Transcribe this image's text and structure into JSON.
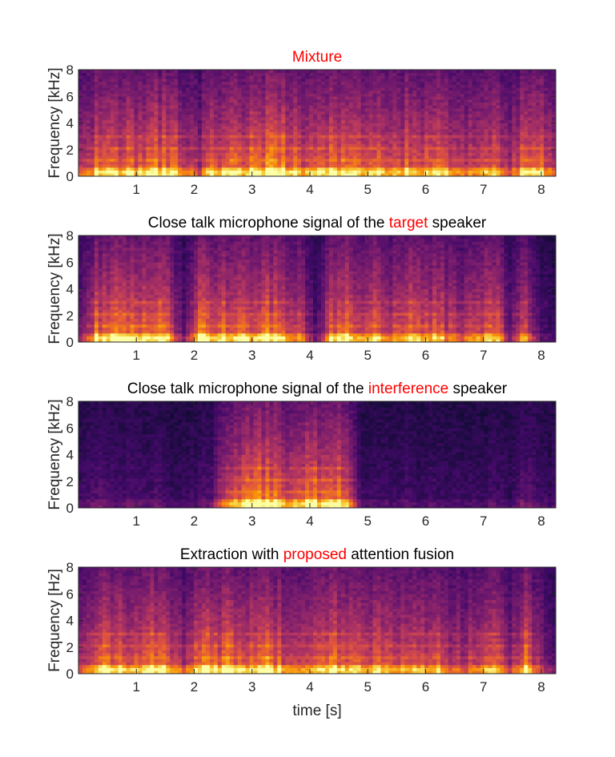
{
  "colors": {
    "highlight": "#ff0000",
    "text": "#000000",
    "axis": "#262626"
  },
  "chart_data": [
    {
      "type": "heatmap",
      "colormap": "inferno",
      "title_parts": [
        {
          "text": "Mixture",
          "highlight": true
        }
      ],
      "ylabel": "Frequency [kHz]",
      "xlabel": "",
      "xticks": [
        1,
        2,
        3,
        4,
        5,
        6,
        7,
        8
      ],
      "yticks": [
        0,
        2,
        4,
        6,
        8
      ],
      "xlim": [
        0,
        8.25
      ],
      "ylim": [
        0,
        8
      ],
      "energy_envelope": [
        0.6,
        0.85,
        0.9,
        0.85,
        0.8,
        0.9,
        0.9,
        0.75,
        0.6,
        0.85,
        0.9,
        0.9,
        0.9,
        0.95,
        0.9,
        0.8,
        0.9,
        0.9,
        0.85,
        0.8,
        0.85,
        0.75,
        0.85,
        0.8,
        0.85,
        0.75,
        0.7,
        0.8,
        0.9,
        0.6,
        0.9,
        0.85,
        0.7
      ]
    },
    {
      "type": "heatmap",
      "colormap": "inferno",
      "title_parts": [
        {
          "text": "Close talk microphone signal of the ",
          "highlight": false
        },
        {
          "text": "target",
          "highlight": true
        },
        {
          "text": " speaker",
          "highlight": false
        }
      ],
      "ylabel": "Frequency [kHz]",
      "xlabel": "",
      "xticks": [
        1,
        2,
        3,
        4,
        5,
        6,
        7,
        8
      ],
      "yticks": [
        0,
        2,
        4,
        6,
        8
      ],
      "xlim": [
        0,
        8.25
      ],
      "ylim": [
        0,
        8
      ],
      "energy_envelope": [
        0.4,
        0.85,
        0.9,
        0.9,
        0.85,
        0.9,
        0.8,
        0.35,
        0.9,
        0.9,
        0.85,
        0.85,
        0.9,
        0.9,
        0.8,
        0.7,
        0.3,
        0.85,
        0.9,
        0.8,
        0.85,
        0.75,
        0.85,
        0.8,
        0.8,
        0.7,
        0.65,
        0.75,
        0.9,
        0.35,
        0.9,
        0.3,
        0.2
      ]
    },
    {
      "type": "heatmap",
      "colormap": "inferno",
      "title_parts": [
        {
          "text": "Close talk microphone signal of the ",
          "highlight": false
        },
        {
          "text": "interference",
          "highlight": true
        },
        {
          "text": " speaker",
          "highlight": false
        }
      ],
      "ylabel": "Frequency [kHz]",
      "xlabel": "",
      "xticks": [
        1,
        2,
        3,
        4,
        5,
        6,
        7,
        8
      ],
      "yticks": [
        0,
        2,
        4,
        6,
        8
      ],
      "xlim": [
        0,
        8.25
      ],
      "ylim": [
        0,
        8
      ],
      "energy_envelope": [
        0.2,
        0.35,
        0.25,
        0.3,
        0.25,
        0.3,
        0.2,
        0.2,
        0.25,
        0.35,
        0.85,
        0.9,
        0.95,
        0.9,
        0.8,
        0.9,
        0.9,
        0.85,
        0.95,
        0.2,
        0.25,
        0.2,
        0.25,
        0.2,
        0.25,
        0.2,
        0.2,
        0.2,
        0.25,
        0.2,
        0.35,
        0.25,
        0.2
      ]
    },
    {
      "type": "heatmap",
      "colormap": "inferno",
      "title_parts": [
        {
          "text": "Extraction with ",
          "highlight": false
        },
        {
          "text": "proposed",
          "highlight": true
        },
        {
          "text": " attention fusion",
          "highlight": false
        }
      ],
      "ylabel": "Frequency [Hz]",
      "xlabel": "time [s]",
      "xticks": [
        1,
        2,
        3,
        4,
        5,
        6,
        7,
        8
      ],
      "yticks": [
        0,
        2,
        4,
        6,
        8
      ],
      "xlim": [
        0,
        8.25
      ],
      "ylim": [
        0,
        8
      ],
      "energy_envelope": [
        0.55,
        0.85,
        0.9,
        0.85,
        0.8,
        0.9,
        0.85,
        0.6,
        0.9,
        0.9,
        0.9,
        0.85,
        0.9,
        0.9,
        0.8,
        0.7,
        0.85,
        0.9,
        0.85,
        0.8,
        0.85,
        0.75,
        0.85,
        0.8,
        0.8,
        0.7,
        0.65,
        0.75,
        0.9,
        0.5,
        0.9,
        0.6,
        0.35
      ]
    }
  ]
}
